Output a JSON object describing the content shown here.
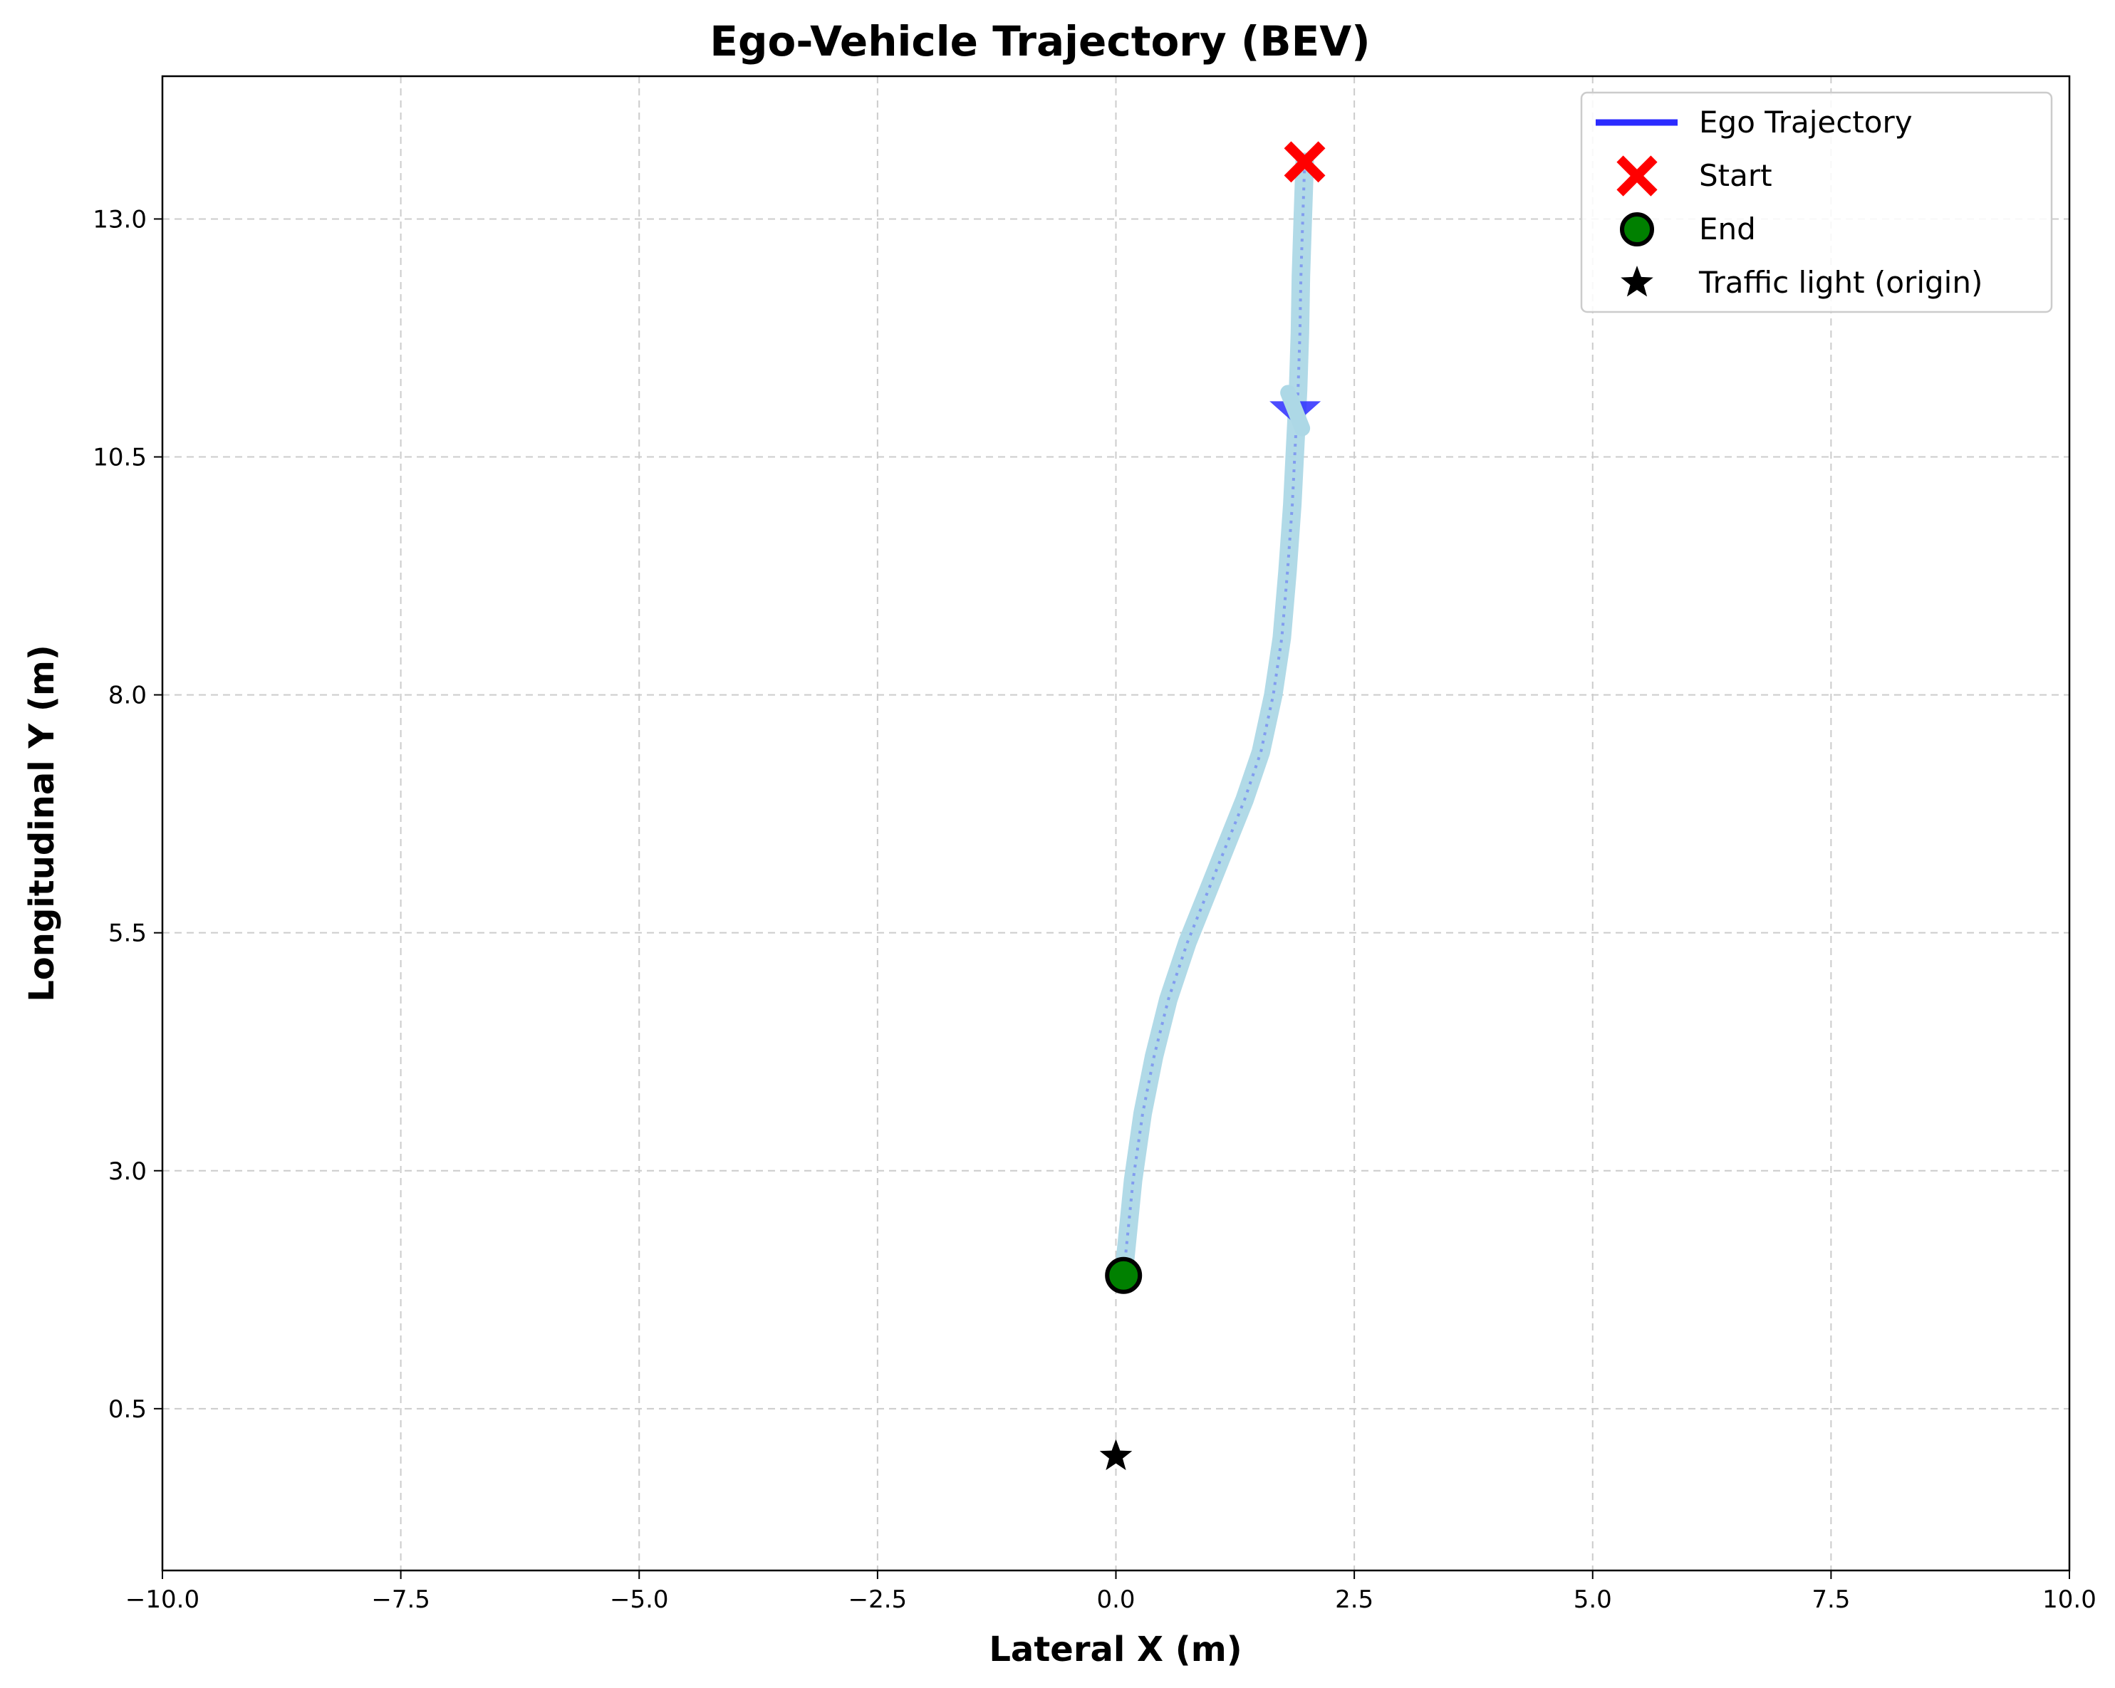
{
  "chart_data": {
    "type": "line",
    "title": "Ego-Vehicle Trajectory (BEV)",
    "xlabel": "Lateral X (m)",
    "ylabel": "Longitudinal Y (m)",
    "xlim": [
      -10,
      10
    ],
    "ylim": [
      -1.2,
      14.5
    ],
    "grid": true,
    "legend_position": "top-right",
    "x_ticks": [
      -10,
      -7.5,
      -5,
      -2.5,
      0,
      2.5,
      5,
      7.5,
      10
    ],
    "x_tick_labels": [
      "−10.0",
      "−7.5",
      "−5.0",
      "−2.5",
      "0.0",
      "2.5",
      "5.0",
      "7.5",
      "10.0"
    ],
    "y_ticks": [
      0.5,
      3.0,
      5.5,
      8.0,
      10.5,
      13.0
    ],
    "y_tick_labels": [
      "0.5",
      "3.0",
      "5.5",
      "8.0",
      "10.5",
      "13.0"
    ],
    "colors": {
      "trajectory": "#2b2bff",
      "trajectory_halo": "#add8e6",
      "start": "#ff0000",
      "end": "#008000",
      "traffic_light": "#000000",
      "grid": "#cccccc"
    },
    "series": [
      {
        "name": "Ego Trajectory",
        "marker": "line",
        "points": [
          [
            1.98,
            13.6
          ],
          [
            1.96,
            13.0
          ],
          [
            1.94,
            12.4
          ],
          [
            1.93,
            11.8
          ],
          [
            1.91,
            11.2
          ],
          [
            1.88,
            10.6
          ],
          [
            1.85,
            10.0
          ],
          [
            1.8,
            9.3
          ],
          [
            1.74,
            8.6
          ],
          [
            1.65,
            8.0
          ],
          [
            1.52,
            7.4
          ],
          [
            1.35,
            6.9
          ],
          [
            1.15,
            6.4
          ],
          [
            0.95,
            5.9
          ],
          [
            0.75,
            5.4
          ],
          [
            0.55,
            4.8
          ],
          [
            0.4,
            4.2
          ],
          [
            0.28,
            3.6
          ],
          [
            0.18,
            2.9
          ],
          [
            0.12,
            2.3
          ],
          [
            0.08,
            1.9
          ]
        ]
      },
      {
        "name": "Start",
        "marker": "x",
        "points": [
          [
            1.98,
            13.6
          ]
        ]
      },
      {
        "name": "End",
        "marker": "circle",
        "points": [
          [
            0.08,
            1.9
          ]
        ]
      },
      {
        "name": "Traffic light (origin)",
        "marker": "star",
        "points": [
          [
            0.0,
            0.0
          ]
        ]
      }
    ],
    "direction_arrow": {
      "points": [
        [
          1.88,
          10.95
        ]
      ],
      "marker": "triangle-down"
    }
  }
}
